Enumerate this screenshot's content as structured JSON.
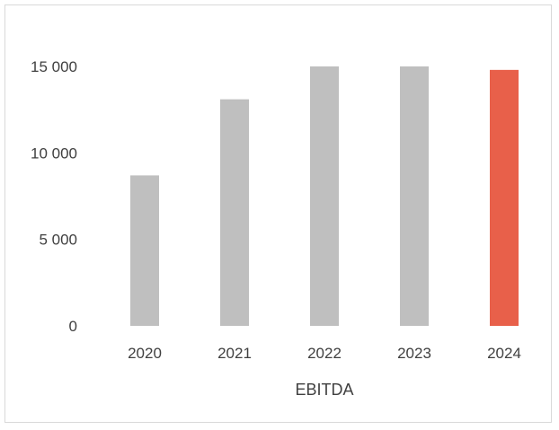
{
  "chart_data": {
    "type": "bar",
    "categories": [
      "2020",
      "2021",
      "2022",
      "2023",
      "2024"
    ],
    "values": [
      8700,
      13100,
      15000,
      15000,
      14800
    ],
    "bar_colors": [
      "#bfbfbf",
      "#bfbfbf",
      "#bfbfbf",
      "#bfbfbf",
      "#e8604a"
    ],
    "ylim": [
      0,
      15000
    ],
    "yticks": [
      0,
      5000,
      10000,
      15000
    ],
    "ytick_labels": [
      "0",
      "5 000",
      "10 000",
      "15 000"
    ],
    "xlabel": "EBITDA",
    "grid": false,
    "legend": "none"
  }
}
